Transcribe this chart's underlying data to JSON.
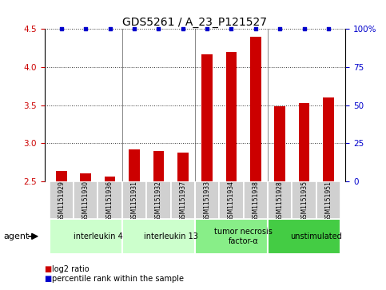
{
  "title": "GDS5261 / A_23_P121527",
  "samples": [
    "GSM1151929",
    "GSM1151930",
    "GSM1151936",
    "GSM1151931",
    "GSM1151932",
    "GSM1151937",
    "GSM1151933",
    "GSM1151934",
    "GSM1151938",
    "GSM1151928",
    "GSM1151935",
    "GSM1151951"
  ],
  "log2_values": [
    2.63,
    2.6,
    2.56,
    2.92,
    2.9,
    2.88,
    4.17,
    4.2,
    4.4,
    3.48,
    3.53,
    3.6
  ],
  "percentile_values": [
    100,
    100,
    100,
    100,
    100,
    100,
    100,
    100,
    100,
    100,
    100,
    100
  ],
  "bar_color": "#cc0000",
  "dot_color": "#0000cc",
  "ylim_left": [
    2.5,
    4.5
  ],
  "ylim_right": [
    0,
    100
  ],
  "yticks_left": [
    2.5,
    3.0,
    3.5,
    4.0,
    4.5
  ],
  "yticks_right": [
    0,
    25,
    50,
    75,
    100
  ],
  "ytick_labels_right": [
    "0",
    "25",
    "50",
    "75",
    "100%"
  ],
  "groups": [
    {
      "label": "interleukin 4",
      "start": 0,
      "end": 3,
      "color": "#ccffcc"
    },
    {
      "label": "interleukin 13",
      "start": 3,
      "end": 6,
      "color": "#ccffcc"
    },
    {
      "label": "tumor necrosis\nfactor-α",
      "start": 6,
      "end": 9,
      "color": "#88ee88"
    },
    {
      "label": "unstimulated",
      "start": 9,
      "end": 12,
      "color": "#44cc44"
    }
  ],
  "agent_label": "agent",
  "legend_log2": "log2 ratio",
  "legend_percentile": "percentile rank within the sample",
  "background_color": "#ffffff",
  "plot_bg_color": "#ffffff",
  "bar_width": 0.45,
  "title_fontsize": 10,
  "tick_fontsize": 7.5,
  "sample_fontsize": 5.5,
  "group_fontsize": 7,
  "legend_fontsize": 7
}
